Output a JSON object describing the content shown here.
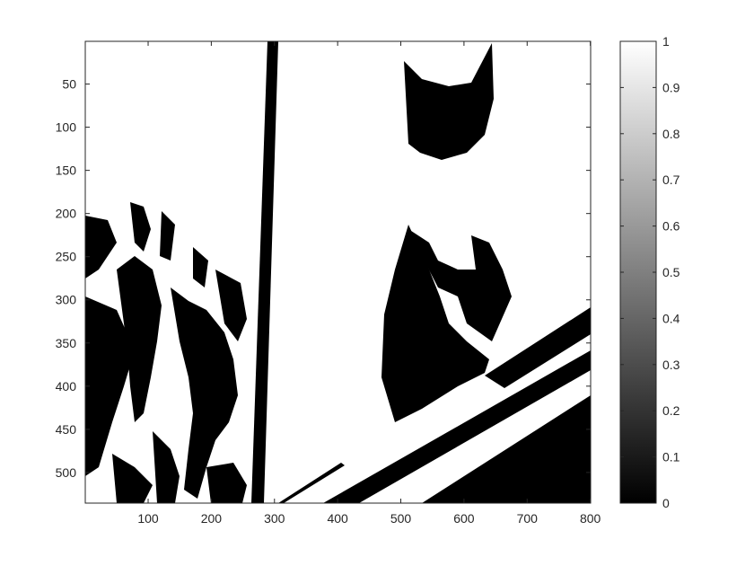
{
  "chart_data": {
    "type": "heatmap",
    "title": "",
    "xlabel": "",
    "ylabel": "",
    "xlim": [
      0.5,
      800.5
    ],
    "ylim": [
      0.5,
      535.5
    ],
    "y_reversed": true,
    "xticks": [
      100,
      200,
      300,
      400,
      500,
      600,
      700,
      800
    ],
    "yticks": [
      50,
      100,
      150,
      200,
      250,
      300,
      350,
      400,
      450,
      500
    ],
    "colormap": "gray",
    "clim": [
      0,
      1
    ],
    "colorbar_ticks": [
      0,
      0.1,
      0.2,
      0.3,
      0.4,
      0.5,
      0.6,
      0.7,
      0.8,
      0.9,
      1
    ],
    "colors": {
      "low": "#000000",
      "high": "#ffffff",
      "axis": "#262626"
    },
    "image_description": "binary (0/1) thresholded image"
  }
}
